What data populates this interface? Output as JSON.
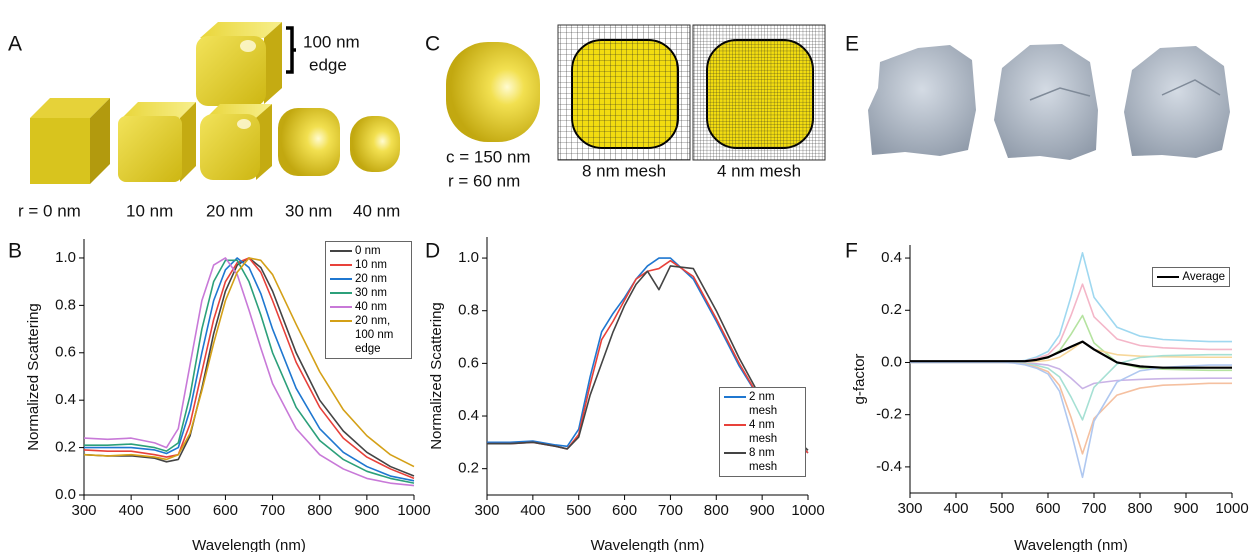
{
  "panels": {
    "A": {
      "label": "A",
      "size_note": [
        "100 nm",
        "edge"
      ],
      "radii": [
        "r = 0 nm",
        "10 nm",
        "20 nm",
        "30 nm",
        "40 nm"
      ]
    },
    "C": {
      "label": "C",
      "shape": [
        "c = 150 nm",
        "r = 60 nm"
      ],
      "meshes": [
        "8 nm mesh",
        "4 nm mesh"
      ]
    },
    "E": {
      "label": "E"
    }
  },
  "chart_data": [
    {
      "type": "line",
      "label": "B",
      "x_label": "Wavelength (nm)",
      "y_label": "Normalized Scattering",
      "x": [
        300,
        350,
        400,
        450,
        475,
        500,
        525,
        550,
        575,
        600,
        625,
        650,
        675,
        700,
        750,
        800,
        850,
        900,
        950,
        1000
      ],
      "xlim": [
        300,
        1000
      ],
      "xticks": [
        300,
        400,
        500,
        600,
        700,
        800,
        900,
        1000
      ],
      "ylim": [
        0,
        1.08
      ],
      "yticks": [
        {
          "value": 0,
          "label": "0.0"
        },
        0.2,
        0.4,
        0.6,
        0.8,
        {
          "value": 1,
          "label": "1.0"
        }
      ],
      "legend": "upper right",
      "series": [
        {
          "name": "0 nm",
          "color": "#444444",
          "values": [
            0.17,
            0.165,
            0.165,
            0.155,
            0.14,
            0.15,
            0.25,
            0.45,
            0.68,
            0.86,
            0.97,
            1.0,
            0.96,
            0.86,
            0.6,
            0.4,
            0.27,
            0.18,
            0.12,
            0.08
          ]
        },
        {
          "name": "10 nm",
          "color": "#e8413a",
          "values": [
            0.19,
            0.185,
            0.185,
            0.17,
            0.16,
            0.17,
            0.3,
            0.52,
            0.74,
            0.9,
            0.98,
            1.0,
            0.94,
            0.82,
            0.56,
            0.37,
            0.24,
            0.16,
            0.11,
            0.07
          ]
        },
        {
          "name": "20 nm",
          "color": "#1f77d0",
          "values": [
            0.2,
            0.2,
            0.2,
            0.19,
            0.175,
            0.2,
            0.36,
            0.6,
            0.82,
            0.95,
            1.0,
            0.96,
            0.85,
            0.7,
            0.45,
            0.28,
            0.18,
            0.12,
            0.08,
            0.06
          ]
        },
        {
          "name": "30 nm",
          "color": "#2ca07a",
          "values": [
            0.21,
            0.21,
            0.215,
            0.2,
            0.185,
            0.22,
            0.42,
            0.7,
            0.9,
            0.99,
            0.99,
            0.9,
            0.76,
            0.6,
            0.37,
            0.23,
            0.15,
            0.1,
            0.07,
            0.05
          ]
        },
        {
          "name": "40 nm",
          "color": "#c879d8",
          "values": [
            0.24,
            0.235,
            0.24,
            0.22,
            0.2,
            0.28,
            0.55,
            0.82,
            0.97,
            1.0,
            0.93,
            0.78,
            0.62,
            0.47,
            0.28,
            0.17,
            0.11,
            0.07,
            0.05,
            0.04
          ]
        },
        {
          "name": "20 nm, 100 nm edge",
          "color": "#d4a017",
          "values": [
            0.17,
            0.165,
            0.17,
            0.16,
            0.15,
            0.17,
            0.26,
            0.44,
            0.64,
            0.82,
            0.94,
            1.0,
            0.99,
            0.93,
            0.72,
            0.52,
            0.36,
            0.25,
            0.17,
            0.12
          ]
        }
      ]
    },
    {
      "type": "line",
      "label": "D",
      "x_label": "Wavelength (nm)",
      "y_label": "Normalized Scattering",
      "x": [
        300,
        350,
        400,
        450,
        475,
        500,
        525,
        550,
        575,
        600,
        625,
        650,
        675,
        700,
        750,
        800,
        850,
        900,
        950,
        1000
      ],
      "xlim": [
        300,
        1000
      ],
      "xticks": [
        300,
        400,
        500,
        600,
        700,
        800,
        900,
        1000
      ],
      "ylim": [
        0.1,
        1.08
      ],
      "yticks": [
        0.2,
        0.4,
        0.6,
        0.8,
        {
          "value": 1,
          "label": "1.0"
        }
      ],
      "legend": "lower right",
      "series": [
        {
          "name": "2 nm mesh",
          "color": "#1f77d0",
          "values": [
            0.3,
            0.3,
            0.305,
            0.29,
            0.285,
            0.35,
            0.55,
            0.72,
            0.79,
            0.85,
            0.92,
            0.97,
            1.0,
            1.0,
            0.92,
            0.76,
            0.59,
            0.45,
            0.34,
            0.26
          ]
        },
        {
          "name": "4 nm mesh",
          "color": "#e8413a",
          "values": [
            0.295,
            0.295,
            0.3,
            0.285,
            0.275,
            0.33,
            0.52,
            0.69,
            0.76,
            0.84,
            0.92,
            0.95,
            0.96,
            0.99,
            0.93,
            0.77,
            0.6,
            0.45,
            0.34,
            0.26
          ]
        },
        {
          "name": "8 nm mesh",
          "color": "#444444",
          "values": [
            0.295,
            0.295,
            0.3,
            0.285,
            0.275,
            0.32,
            0.48,
            0.6,
            0.72,
            0.82,
            0.9,
            0.95,
            0.88,
            0.97,
            0.96,
            0.8,
            0.62,
            0.46,
            0.35,
            0.27
          ]
        }
      ]
    },
    {
      "type": "line",
      "label": "F",
      "x_label": "Wavelength (nm)",
      "y_label": "g-factor",
      "x": [
        300,
        350,
        400,
        450,
        475,
        500,
        525,
        550,
        575,
        600,
        625,
        650,
        675,
        700,
        750,
        800,
        850,
        900,
        950,
        1000
      ],
      "xlim": [
        300,
        1000
      ],
      "xticks": [
        300,
        400,
        500,
        600,
        700,
        800,
        900,
        1000
      ],
      "ylim": [
        -0.5,
        0.45
      ],
      "yticks": [
        -0.4,
        -0.2,
        {
          "value": 0,
          "label": "0.0"
        },
        0.2,
        0.4
      ],
      "legend": "upper right",
      "series": [
        {
          "color": "#9fd8f0",
          "values": [
            0,
            0,
            0,
            0,
            0,
            0,
            0.002,
            0.008,
            0.021,
            0.042,
            0.105,
            0.252,
            0.42,
            0.25,
            0.135,
            0.101,
            0.088,
            0.084,
            0.08,
            0.08
          ]
        },
        {
          "color": "#f4b6c8",
          "values": [
            0,
            0,
            0,
            0,
            0,
            0,
            0.002,
            0.006,
            0.015,
            0.03,
            0.075,
            0.18,
            0.3,
            0.175,
            0.09,
            0.065,
            0.056,
            0.053,
            0.05,
            0.05
          ]
        },
        {
          "color": "#b5e3a0",
          "values": [
            0,
            0,
            0,
            0,
            0,
            0,
            0.001,
            0.004,
            0.009,
            0.018,
            0.045,
            0.108,
            0.18,
            0.075,
            0,
            -0.021,
            -0.026,
            -0.028,
            -0.03,
            -0.03
          ]
        },
        {
          "color": "#f7d79a",
          "values": [
            0,
            0,
            0,
            0,
            0,
            0,
            0,
            0.002,
            0.004,
            0.008,
            0.02,
            0.048,
            0.08,
            0.05,
            0.03,
            0.024,
            0.022,
            0.021,
            0.02,
            0.02
          ]
        },
        {
          "color": "#c9b3e6",
          "values": [
            0,
            0,
            0,
            0,
            0,
            0,
            -0.001,
            -0.002,
            -0.005,
            -0.01,
            -0.025,
            -0.06,
            -0.1,
            -0.08,
            -0.069,
            -0.065,
            -0.062,
            -0.061,
            -0.06,
            -0.06
          ]
        },
        {
          "color": "#a6e0d4",
          "values": [
            0,
            0,
            0,
            0,
            0,
            0,
            -0.001,
            -0.004,
            -0.011,
            -0.022,
            -0.055,
            -0.132,
            -0.22,
            -0.095,
            -0.006,
            0.019,
            0.026,
            0.028,
            0.03,
            0.03
          ]
        },
        {
          "color": "#f5c0a0",
          "values": [
            0,
            0,
            0,
            0,
            0,
            0,
            -0.002,
            -0.007,
            -0.018,
            -0.035,
            -0.088,
            -0.21,
            -0.35,
            -0.215,
            -0.125,
            -0.098,
            -0.087,
            -0.084,
            -0.08,
            -0.08
          ]
        },
        {
          "color": "#b0c8f0",
          "values": [
            0,
            0,
            0,
            0,
            0,
            0,
            -0.002,
            -0.009,
            -0.022,
            -0.044,
            -0.11,
            -0.264,
            -0.44,
            -0.225,
            -0.075,
            -0.032,
            -0.019,
            -0.014,
            -0.01,
            -0.01
          ]
        },
        {
          "name": "Average",
          "color": "#000000",
          "width": 2.2,
          "values": [
            0.005,
            0.005,
            0.005,
            0.005,
            0.005,
            0.005,
            0.005,
            0.005,
            0.01,
            0.02,
            0.04,
            0.06,
            0.08,
            0.05,
            0,
            -0.015,
            -0.02,
            -0.02,
            -0.02,
            -0.02
          ]
        }
      ]
    }
  ]
}
